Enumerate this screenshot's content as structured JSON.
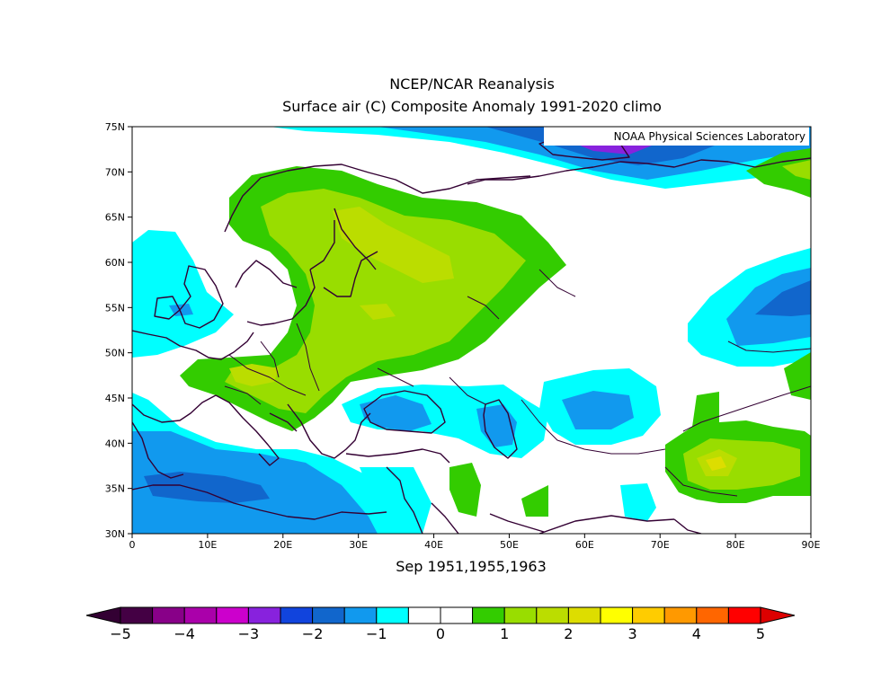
{
  "title": "NCEP/NCAR Reanalysis",
  "subtitle": "Surface air (C) Composite Anomaly 1991-2020 climo",
  "credit": "NOAA Physical Sciences Laboratory",
  "period_label": "Sep 1951,1955,1963",
  "map": {
    "lon_range": [
      0,
      90
    ],
    "lat_range": [
      30,
      75
    ],
    "lat_ticks": [
      {
        "value": 75,
        "label": "75N"
      },
      {
        "value": 70,
        "label": "70N"
      },
      {
        "value": 65,
        "label": "65N"
      },
      {
        "value": 60,
        "label": "60N"
      },
      {
        "value": 55,
        "label": "55N"
      },
      {
        "value": 50,
        "label": "50N"
      },
      {
        "value": 45,
        "label": "45N"
      },
      {
        "value": 40,
        "label": "40N"
      },
      {
        "value": 35,
        "label": "35N"
      },
      {
        "value": 30,
        "label": "30N"
      }
    ],
    "lon_ticks": [
      {
        "value": 0,
        "label": "0"
      },
      {
        "value": 10,
        "label": "10E"
      },
      {
        "value": 20,
        "label": "20E"
      },
      {
        "value": 30,
        "label": "30E"
      },
      {
        "value": 40,
        "label": "40E"
      },
      {
        "value": 50,
        "label": "50E"
      },
      {
        "value": 60,
        "label": "60E"
      },
      {
        "value": 70,
        "label": "70E"
      },
      {
        "value": 80,
        "label": "80E"
      },
      {
        "value": 90,
        "label": "90E"
      }
    ]
  },
  "colorbar": {
    "colors": [
      "#440044",
      "#880088",
      "#aa00aa",
      "#cc00cc",
      "#8822dd",
      "#1144dd",
      "#1166cc",
      "#1199ee",
      "#00ffff",
      "#ffffff",
      "#ffffff",
      "#33cc00",
      "#99dd00",
      "#bbdd00",
      "#dddd00",
      "#ffff00",
      "#ffcc00",
      "#ff9900",
      "#ff6600",
      "#ff0000"
    ],
    "under_color": "#330033",
    "over_color": "#dd0000",
    "labels": [
      {
        "value": -5,
        "text": "−5"
      },
      {
        "value": -4,
        "text": "−4"
      },
      {
        "value": -3,
        "text": "−3"
      },
      {
        "value": -2,
        "text": "−2"
      },
      {
        "value": -1,
        "text": "−1"
      },
      {
        "value": 0,
        "text": "0"
      },
      {
        "value": 1,
        "text": "1"
      },
      {
        "value": 2,
        "text": "2"
      },
      {
        "value": 3,
        "text": "3"
      },
      {
        "value": 4,
        "text": "4"
      },
      {
        "value": 5,
        "text": "5"
      }
    ]
  },
  "anomaly_colors": {
    "neg3": "#1166cc",
    "neg2": "#1199ee",
    "neg1": "#00ffff",
    "pos1": "#33cc00",
    "pos2": "#99dd00",
    "pos3": "#bbdd00",
    "pos4": "#dddd00",
    "coast": "#330033"
  }
}
